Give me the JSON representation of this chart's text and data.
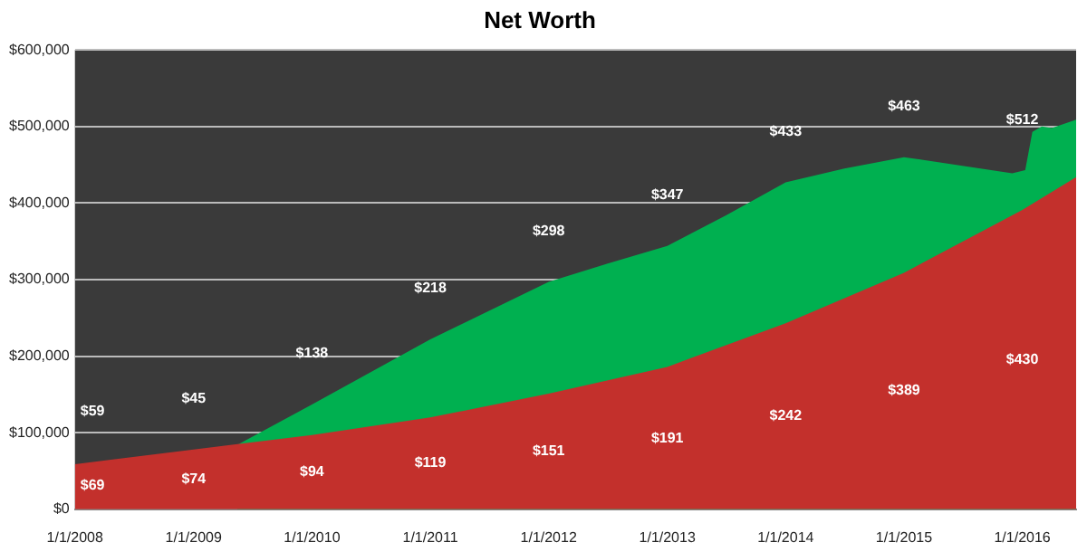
{
  "chart_data": {
    "type": "area",
    "title": "Net Worth",
    "ylim": [
      0,
      600000
    ],
    "yticks": [
      {
        "value": 0,
        "label": "$0"
      },
      {
        "value": 100000,
        "label": "$100,000"
      },
      {
        "value": 200000,
        "label": "$200,000"
      },
      {
        "value": 300000,
        "label": "$300,000"
      },
      {
        "value": 400000,
        "label": "$400,000"
      },
      {
        "value": 500000,
        "label": "$500,000"
      },
      {
        "value": 600000,
        "label": "$600,000"
      }
    ],
    "xlim": [
      "2008-01-01",
      "2016-06-15"
    ],
    "xticks": [
      {
        "value": "2008-01-01",
        "label": "1/1/2008"
      },
      {
        "value": "2009-01-01",
        "label": "1/1/2009"
      },
      {
        "value": "2010-01-01",
        "label": "1/1/2010"
      },
      {
        "value": "2011-01-01",
        "label": "1/1/2011"
      },
      {
        "value": "2012-01-01",
        "label": "1/1/2012"
      },
      {
        "value": "2013-01-01",
        "label": "1/1/2013"
      },
      {
        "value": "2014-01-01",
        "label": "1/1/2014"
      },
      {
        "value": "2015-01-01",
        "label": "1/1/2015"
      },
      {
        "value": "2016-01-01",
        "label": "1/1/2016"
      }
    ],
    "grid": "y",
    "legend": false,
    "series": [
      {
        "color": "#00b050",
        "x": [
          "2009-05-15",
          "2010-01-01",
          "2011-01-01",
          "2012-01-01",
          "2012-07-01",
          "2013-01-01",
          "2013-07-01",
          "2014-01-01",
          "2014-07-01",
          "2015-01-01",
          "2015-12-01",
          "2016-01-10",
          "2016-02-01",
          "2016-03-01",
          "2016-04-01",
          "2016-06-15"
        ],
        "values": [
          84000,
          137000,
          222000,
          297000,
          321000,
          344000,
          384000,
          427000,
          445000,
          460000,
          439000,
          443000,
          493000,
          500000,
          498000,
          509000
        ]
      },
      {
        "color": "#c3302c",
        "x": [
          "2008-01-01",
          "2009-01-01",
          "2010-01-01",
          "2011-01-01",
          "2012-01-01",
          "2013-01-01",
          "2014-01-01",
          "2015-01-01",
          "2016-01-01",
          "2016-06-15"
        ],
        "values": [
          59000,
          78000,
          97000,
          120000,
          151000,
          186000,
          243000,
          309000,
          391000,
          434000
        ]
      }
    ],
    "annotations": [
      "$59",
      "$45",
      "$138",
      "$218",
      "$298",
      "$347",
      "$433",
      "$463",
      "$512",
      "$69",
      "$74",
      "$94",
      "$119",
      "$151",
      "$191",
      "$242",
      "$389",
      "$430"
    ]
  }
}
